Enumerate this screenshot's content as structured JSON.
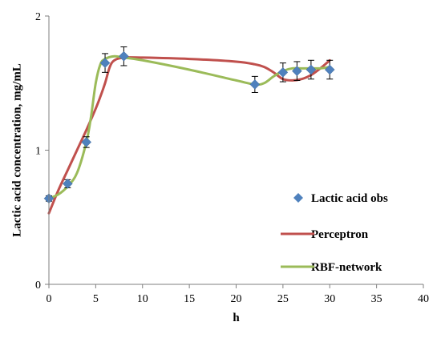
{
  "chart_data": {
    "type": "scatter",
    "xlabel": "h",
    "ylabel": "Lactic acid concentration, mg/mL",
    "xlim": [
      0,
      40
    ],
    "ylim": [
      0,
      2
    ],
    "xticks": [
      "0",
      "5",
      "10",
      "15",
      "20",
      "25",
      "30",
      "35",
      "40"
    ],
    "yticks": [
      "0",
      "1",
      "2"
    ],
    "grid": false,
    "legend_position": "right",
    "series": [
      {
        "name": "Lactic acid obs",
        "kind": "markers",
        "marker": "diamond",
        "color": "#4f81bd",
        "x": [
          0,
          2,
          4,
          6,
          8,
          22,
          25,
          26.5,
          28,
          30
        ],
        "y": [
          0.64,
          0.75,
          1.06,
          1.65,
          1.7,
          1.49,
          1.58,
          1.59,
          1.6,
          1.6
        ],
        "error": [
          0.02,
          0.03,
          0.04,
          0.07,
          0.07,
          0.06,
          0.07,
          0.07,
          0.07,
          0.07
        ]
      },
      {
        "name": "Perceptron",
        "kind": "line",
        "color": "#c0504d",
        "x": [
          0,
          1,
          2,
          3,
          4,
          5,
          5.5,
          6,
          6.5,
          7,
          8,
          10,
          15,
          20,
          22,
          23,
          24,
          25,
          26,
          27,
          28,
          29,
          30
        ],
        "y": [
          0.53,
          0.7,
          0.85,
          1.0,
          1.15,
          1.31,
          1.4,
          1.5,
          1.62,
          1.67,
          1.69,
          1.69,
          1.68,
          1.66,
          1.64,
          1.62,
          1.58,
          1.53,
          1.52,
          1.53,
          1.56,
          1.61,
          1.67
        ]
      },
      {
        "name": "RBF-network",
        "kind": "line",
        "color": "#9bbb59",
        "x": [
          0,
          1,
          2,
          3,
          4,
          4.5,
          5,
          5.5,
          6,
          7,
          8,
          10,
          15,
          20,
          22,
          23,
          24,
          25,
          26,
          27,
          28,
          29,
          30
        ],
        "y": [
          0.64,
          0.67,
          0.73,
          0.83,
          1.06,
          1.25,
          1.5,
          1.64,
          1.68,
          1.7,
          1.69,
          1.67,
          1.6,
          1.52,
          1.49,
          1.5,
          1.55,
          1.59,
          1.61,
          1.61,
          1.61,
          1.61,
          1.62
        ]
      }
    ]
  }
}
